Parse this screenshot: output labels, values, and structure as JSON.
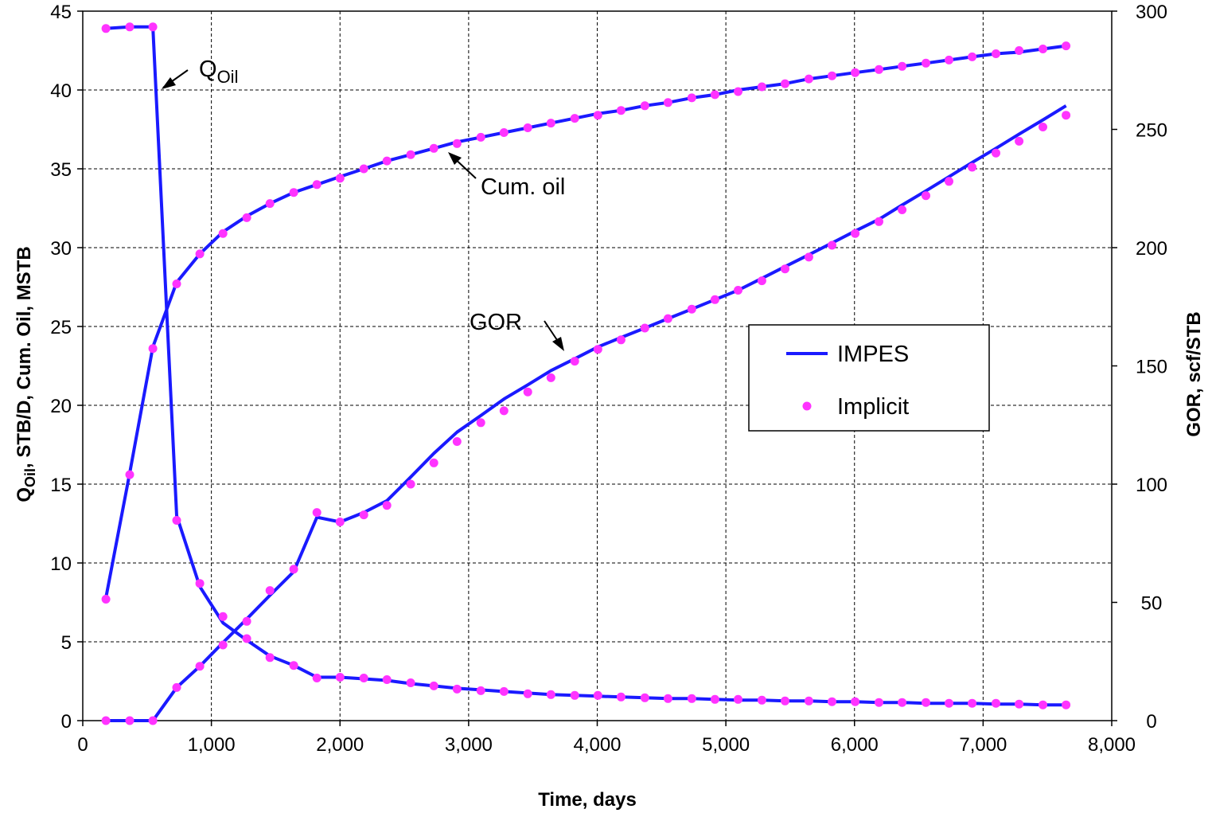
{
  "chart_data": {
    "type": "line",
    "xlabel": "Time, days",
    "ylabel_left": {
      "main": "Q",
      "sub": "Oil",
      "rest": ", STB/D, Cum. Oil, MSTB"
    },
    "ylabel_right": "GOR, scf/STB",
    "xlim": [
      0,
      8000
    ],
    "ylim_left": [
      0,
      45
    ],
    "ylim_right": [
      0,
      300
    ],
    "x_ticks": [
      "0",
      "1,000",
      "2,000",
      "3,000",
      "4,000",
      "5,000",
      "6,000",
      "7,000",
      "8,000"
    ],
    "y_left_ticks": [
      "0",
      "5",
      "10",
      "15",
      "20",
      "25",
      "30",
      "35",
      "40",
      "45"
    ],
    "y_right_ticks": [
      "0",
      "50",
      "100",
      "150",
      "200",
      "250",
      "300"
    ],
    "grid": true,
    "legend": {
      "position": "right",
      "entries": [
        {
          "label": "IMPES",
          "style": "line",
          "color": "#1a1aff"
        },
        {
          "label": "Implicit",
          "style": "marker",
          "color": "#ff33ff"
        }
      ]
    },
    "annotations": [
      {
        "main": "Q",
        "sub": "Oil"
      },
      {
        "main": "Cum. oil",
        "sub": ""
      },
      {
        "main": "GOR",
        "sub": ""
      }
    ],
    "series": [
      {
        "name": "Q_Oil",
        "axis": "left",
        "x": [
          180,
          365,
          545,
          730,
          910,
          1090,
          1275,
          1455,
          1640,
          1820,
          2000,
          2185,
          2365,
          2550,
          2730,
          2910,
          3095,
          3275,
          3460,
          3640,
          3825,
          4005,
          4185,
          4370,
          4550,
          4735,
          4915,
          5095,
          5280,
          5460,
          5645,
          5825,
          6005,
          6190,
          6370,
          6555,
          6735,
          6915,
          7100,
          7280,
          7465,
          7645
        ],
        "impes": [
          43.9,
          44.0,
          44.0,
          13.0,
          8.5,
          6.2,
          5.1,
          4.1,
          3.5,
          2.75,
          2.75,
          2.65,
          2.55,
          2.35,
          2.2,
          2.05,
          1.95,
          1.85,
          1.75,
          1.65,
          1.6,
          1.55,
          1.5,
          1.45,
          1.4,
          1.4,
          1.35,
          1.3,
          1.3,
          1.25,
          1.25,
          1.2,
          1.2,
          1.15,
          1.15,
          1.1,
          1.1,
          1.1,
          1.05,
          1.05,
          1.0,
          1.0
        ],
        "implicit": [
          43.9,
          44.0,
          44.0,
          12.7,
          8.7,
          6.6,
          5.2,
          4.0,
          3.5,
          2.7,
          2.75,
          2.7,
          2.6,
          2.4,
          2.2,
          2.0,
          1.9,
          1.85,
          1.7,
          1.65,
          1.6,
          1.6,
          1.5,
          1.45,
          1.4,
          1.4,
          1.35,
          1.35,
          1.3,
          1.25,
          1.25,
          1.2,
          1.2,
          1.15,
          1.15,
          1.15,
          1.1,
          1.1,
          1.1,
          1.05,
          1.0,
          1.0
        ]
      },
      {
        "name": "Cum. oil",
        "axis": "left",
        "x": [
          180,
          365,
          545,
          730,
          910,
          1090,
          1275,
          1455,
          1640,
          1820,
          2000,
          2185,
          2365,
          2550,
          2730,
          2910,
          3095,
          3275,
          3460,
          3640,
          3825,
          4005,
          4185,
          4370,
          4550,
          4735,
          4915,
          5095,
          5280,
          5460,
          5645,
          5825,
          6005,
          6190,
          6370,
          6555,
          6735,
          6915,
          7100,
          7280,
          7465,
          7645
        ],
        "impes": [
          7.8,
          15.7,
          23.7,
          27.8,
          29.6,
          31.0,
          32.0,
          32.8,
          33.5,
          34.0,
          34.5,
          35.0,
          35.5,
          35.9,
          36.3,
          36.7,
          37.0,
          37.3,
          37.6,
          37.9,
          38.2,
          38.5,
          38.7,
          39.0,
          39.2,
          39.5,
          39.7,
          40.0,
          40.2,
          40.4,
          40.7,
          40.9,
          41.1,
          41.3,
          41.5,
          41.7,
          41.9,
          42.1,
          42.3,
          42.4,
          42.6,
          42.8
        ],
        "implicit": [
          7.7,
          15.6,
          23.6,
          27.7,
          29.6,
          30.9,
          31.9,
          32.8,
          33.5,
          34.0,
          34.4,
          35.0,
          35.5,
          35.9,
          36.3,
          36.6,
          37.0,
          37.3,
          37.6,
          37.9,
          38.2,
          38.4,
          38.7,
          39.0,
          39.2,
          39.5,
          39.7,
          39.9,
          40.2,
          40.4,
          40.7,
          40.9,
          41.1,
          41.3,
          41.5,
          41.7,
          41.9,
          42.1,
          42.3,
          42.5,
          42.6,
          42.8
        ]
      },
      {
        "name": "GOR",
        "axis": "right",
        "x": [
          180,
          365,
          545,
          730,
          910,
          1090,
          1275,
          1455,
          1640,
          1820,
          2000,
          2185,
          2365,
          2550,
          2730,
          2910,
          3095,
          3275,
          3460,
          3640,
          3825,
          4005,
          4185,
          4370,
          4550,
          4735,
          4915,
          5095,
          5280,
          5460,
          5645,
          5825,
          6005,
          6190,
          6370,
          6555,
          6735,
          6915,
          7100,
          7280,
          7465,
          7645
        ],
        "impes": [
          0,
          0,
          0,
          14,
          23,
          33,
          43,
          53,
          63,
          86,
          84,
          88,
          93,
          103,
          113,
          122,
          129,
          136,
          142,
          148,
          153,
          158,
          162,
          166,
          170,
          174,
          178,
          182,
          187,
          192,
          197,
          202,
          207,
          212,
          218,
          224,
          230,
          236,
          242,
          248,
          254,
          260
        ],
        "implicit": [
          0,
          0,
          0,
          14,
          23,
          32,
          42,
          55,
          64,
          88,
          84,
          87,
          91,
          100,
          109,
          118,
          126,
          131,
          139,
          145,
          152,
          157,
          161,
          166,
          170,
          174,
          178,
          182,
          186,
          191,
          196,
          201,
          206,
          211,
          216,
          222,
          228,
          234,
          240,
          245,
          251,
          256
        ]
      }
    ]
  }
}
